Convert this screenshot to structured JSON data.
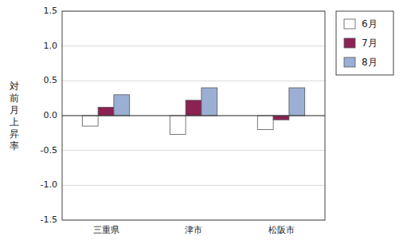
{
  "chart_data": {
    "type": "bar",
    "categories": [
      "三重県",
      "津市",
      "松阪市"
    ],
    "series": [
      {
        "name": "6月",
        "color": "#ffffff",
        "values": [
          -0.15,
          -0.27,
          -0.2
        ]
      },
      {
        "name": "7月",
        "color": "#8b2252",
        "values": [
          0.12,
          0.22,
          -0.06
        ]
      },
      {
        "name": "8月",
        "color": "#9bafd4",
        "values": [
          0.3,
          0.4,
          0.4
        ]
      }
    ],
    "y_label": "対前月上昇率",
    "ylim": [
      -1.5,
      1.5
    ],
    "yticks": [
      -1.5,
      {
        "value": -1.0,
        "label": "-1.0"
      },
      -0.5,
      {
        "value": 0.0,
        "label": "0.0"
      },
      0.5,
      {
        "value": 1.0,
        "label": "1.0"
      },
      1.5
    ],
    "grid": true,
    "legend": "right"
  }
}
